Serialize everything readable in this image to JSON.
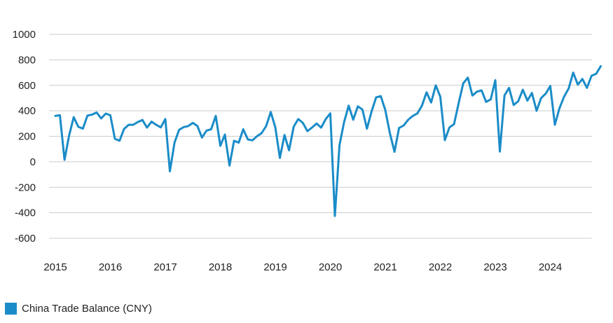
{
  "chart_data": {
    "type": "line",
    "title": "",
    "xlabel": "",
    "ylabel": "",
    "ylim": [
      -600,
      1000
    ],
    "yticks": [
      1000,
      800,
      600,
      400,
      200,
      0,
      -200,
      -400,
      -600
    ],
    "xlim": [
      2015,
      2025
    ],
    "xticks": [
      "2015",
      "2016",
      "2017",
      "2018",
      "2019",
      "2020",
      "2021",
      "2022",
      "2023",
      "2024"
    ],
    "grid": true,
    "legend_position": "bottom-left",
    "series": [
      {
        "name": "China Trade Balance (CNY)",
        "color": "#1a8cc8",
        "x_start": "2015-01",
        "x_step": "month",
        "values": [
          360,
          365,
          15,
          205,
          350,
          275,
          260,
          362,
          370,
          387,
          340,
          378,
          365,
          180,
          165,
          258,
          290,
          290,
          312,
          328,
          268,
          315,
          290,
          270,
          335,
          -75,
          150,
          250,
          272,
          280,
          305,
          280,
          190,
          245,
          255,
          360,
          125,
          213,
          -30,
          165,
          150,
          255,
          175,
          168,
          200,
          225,
          280,
          390,
          270,
          30,
          210,
          90,
          275,
          335,
          305,
          240,
          268,
          300,
          268,
          335,
          380,
          -425,
          130,
          310,
          440,
          330,
          435,
          410,
          260,
          395,
          505,
          515,
          405,
          225,
          78,
          265,
          285,
          330,
          360,
          380,
          440,
          545,
          465,
          600,
          510,
          170,
          270,
          295,
          460,
          615,
          660,
          520,
          550,
          560,
          470,
          490,
          640,
          80,
          520,
          580,
          445,
          475,
          565,
          480,
          540,
          400,
          500,
          535,
          595,
          290,
          420,
          510,
          575,
          700,
          605,
          650,
          580,
          675,
          690,
          750
        ]
      }
    ]
  },
  "legend": {
    "label": "China Trade Balance (CNY)",
    "color": "#1a8cc8"
  }
}
